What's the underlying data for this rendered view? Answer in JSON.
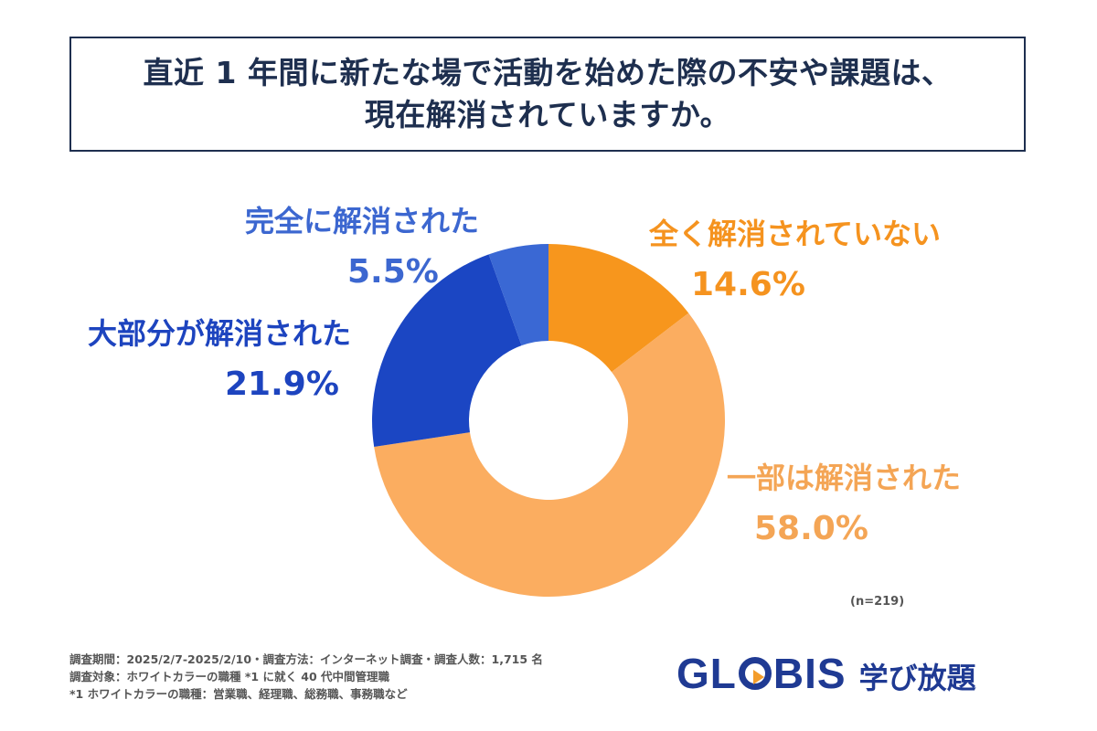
{
  "title_lines": [
    "直近 1 年間に新たな場で活動を始めた際の不安や課題は、",
    "現在解消されていますか。"
  ],
  "chart_data": {
    "type": "pie",
    "donut": true,
    "slices": [
      {
        "label": "全く解消されていない",
        "value": 14.6,
        "display": "14.6%",
        "color": "#f7961d",
        "label_color": "#f5931f"
      },
      {
        "label": "一部は解消された",
        "value": 58.0,
        "display": "58.0%",
        "color": "#fbad60",
        "label_color": "#f4a555"
      },
      {
        "label": "大部分が解消された",
        "value": 21.9,
        "display": "21.9%",
        "color": "#1b46c3",
        "label_color": "#1d44bf"
      },
      {
        "label": "完全に解消された",
        "value": 5.5,
        "display": "5.5%",
        "color": "#3a68d4",
        "label_color": "#3c67d0"
      }
    ],
    "sample_size": "(n=219)"
  },
  "notes": [
    "調査期間：2025/2/7-2025/2/10・調査方法：インターネット調査・調査人数：1,715 名",
    "調査対象：ホワイトカラーの職種 *1 に就く 40 代中間管理職",
    "*1 ホワイトカラーの職種：営業職、経理職、総務職、事務職など"
  ],
  "logo": {
    "brand_left": "GL",
    "brand_right": "BIS",
    "service": "学び放題",
    "color": "#1f3a93",
    "accent": "#f39c2a"
  }
}
